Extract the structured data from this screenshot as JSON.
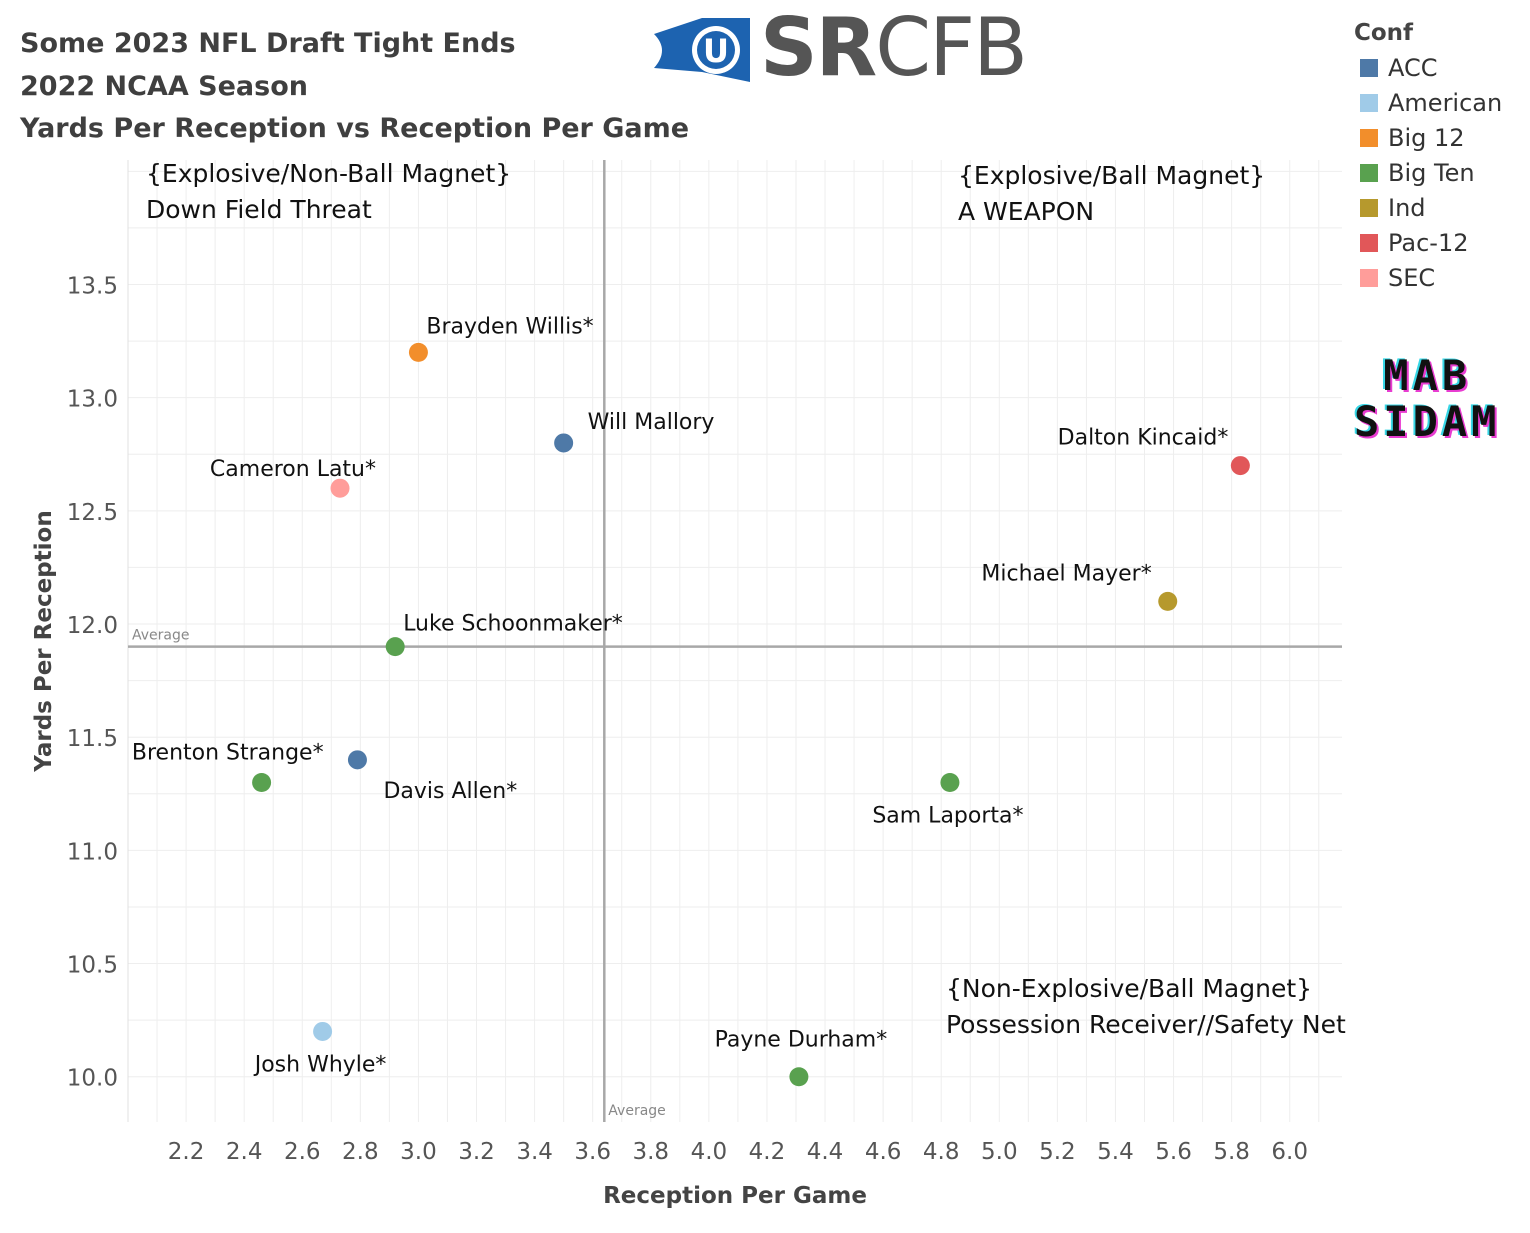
{
  "title_lines": [
    "Some 2023 NFL Draft Tight Ends",
    "2022 NCAA Season",
    "Yards Per Reception vs Reception Per Game"
  ],
  "logo": {
    "text_bold": "SR",
    "text_light": "CFB",
    "emblem_letter": "U",
    "emblem_color": "#1d63b0",
    "icon": "srcfb-logo"
  },
  "watermark": {
    "line1": "MAB",
    "line2": "SIDAM"
  },
  "legend": {
    "title": "Conf",
    "items": [
      {
        "label": "ACC",
        "color": "#4e79a7"
      },
      {
        "label": "American",
        "color": "#a0cbe8"
      },
      {
        "label": "Big 12",
        "color": "#f28e2b"
      },
      {
        "label": "Big Ten",
        "color": "#59a14f"
      },
      {
        "label": "Ind",
        "color": "#b6992d"
      },
      {
        "label": "Pac-12",
        "color": "#e15759"
      },
      {
        "label": "SEC",
        "color": "#ff9d9a"
      }
    ]
  },
  "quadrants": {
    "top_left": [
      "{Explosive/Non-Ball Magnet}",
      "Down Field Threat"
    ],
    "top_right": [
      "{Explosive/Ball Magnet}",
      "A WEAPON"
    ],
    "bottom_right": [
      "{Non-Explosive/Ball Magnet}",
      "Possession Receiver//Safety Net"
    ]
  },
  "chart_data": {
    "type": "scatter",
    "xlabel": "Reception Per Game",
    "ylabel": "Yards Per Reception",
    "xlim": [
      2.0,
      6.18
    ],
    "ylim": [
      9.8,
      14.05
    ],
    "xticks": [
      2.2,
      2.4,
      2.6,
      2.8,
      3.0,
      3.2,
      3.4,
      3.6,
      3.8,
      4.0,
      4.2,
      4.4,
      4.6,
      4.8,
      5.0,
      5.2,
      5.4,
      5.6,
      5.8,
      6.0
    ],
    "yticks": [
      10.0,
      10.5,
      11.0,
      11.5,
      12.0,
      12.5,
      13.0,
      13.5
    ],
    "grid": true,
    "reference_lines": [
      {
        "axis": "x",
        "value": 3.64,
        "label": "Average"
      },
      {
        "axis": "y",
        "value": 11.9,
        "label": "Average"
      }
    ],
    "points": [
      {
        "name": "Brayden Willis*",
        "conf": "Big 12",
        "x": 3.0,
        "y": 13.2
      },
      {
        "name": "Will Mallory",
        "conf": "ACC",
        "x": 3.5,
        "y": 12.8
      },
      {
        "name": "Cameron Latu*",
        "conf": "SEC",
        "x": 2.73,
        "y": 12.6
      },
      {
        "name": "Dalton Kincaid*",
        "conf": "Pac-12",
        "x": 5.83,
        "y": 12.7
      },
      {
        "name": "Michael Mayer*",
        "conf": "Ind",
        "x": 5.58,
        "y": 12.1
      },
      {
        "name": "Luke Schoonmaker*",
        "conf": "Big Ten",
        "x": 2.92,
        "y": 11.9
      },
      {
        "name": "Brenton Strange*",
        "conf": "Big Ten",
        "x": 2.46,
        "y": 11.3
      },
      {
        "name": "Davis Allen*",
        "conf": "ACC",
        "x": 2.79,
        "y": 11.4
      },
      {
        "name": "Sam Laporta*",
        "conf": "Big Ten",
        "x": 4.83,
        "y": 11.3
      },
      {
        "name": "Josh Whyle*",
        "conf": "American",
        "x": 2.67,
        "y": 10.2
      },
      {
        "name": "Payne Durham*",
        "conf": "Big Ten",
        "x": 4.31,
        "y": 10.0
      }
    ]
  }
}
